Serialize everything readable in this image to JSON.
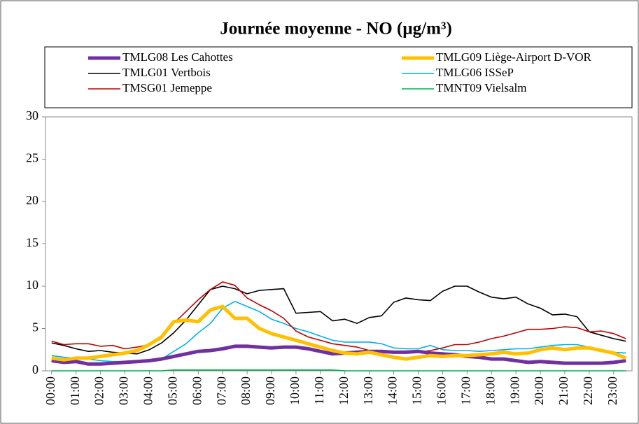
{
  "chart_data": {
    "type": "line",
    "title": "Journée moyenne - NO (µg/m³)",
    "categories": [
      "00:00",
      null,
      "01:00",
      null,
      "02:00",
      null,
      "03:00",
      null,
      "04:00",
      null,
      "05:00",
      null,
      "06:00",
      null,
      "07:00",
      null,
      "08:00",
      null,
      "09:00",
      null,
      "10:00",
      null,
      "11:00",
      null,
      "12:00",
      null,
      "13:00",
      null,
      "14:00",
      null,
      "15:00",
      null,
      "16:00",
      null,
      "17:00",
      null,
      "18:00",
      null,
      "19:00",
      null,
      "20:00",
      null,
      "21:00",
      null,
      "22:00",
      null,
      "23:00",
      null
    ],
    "series": [
      {
        "name": "TMLG08 Les Cahottes",
        "color": "#7030a0",
        "values": [
          1.2,
          1.0,
          1.1,
          0.8,
          0.8,
          0.9,
          1.0,
          1.1,
          1.2,
          1.4,
          1.7,
          2.0,
          2.3,
          2.4,
          2.6,
          2.9,
          2.9,
          2.8,
          2.7,
          2.8,
          2.8,
          2.6,
          2.3,
          2.0,
          2.1,
          2.2,
          2.3,
          2.3,
          2.2,
          2.2,
          2.3,
          2.1,
          2.0,
          1.9,
          1.7,
          1.6,
          1.4,
          1.4,
          1.2,
          1.0,
          1.1,
          1.0,
          0.9,
          0.9,
          0.9,
          0.9,
          1.0,
          1.2
        ]
      },
      {
        "name": "TMLG09 Liège-Airport D-VOR",
        "color": "#ffc000",
        "values": [
          1.5,
          1.3,
          1.5,
          1.5,
          1.7,
          1.9,
          2.1,
          2.4,
          3.1,
          4.0,
          5.8,
          6.0,
          5.8,
          7.2,
          7.6,
          6.2,
          6.2,
          5.0,
          4.4,
          4.0,
          3.6,
          3.2,
          2.8,
          2.4,
          2.1,
          2.0,
          2.2,
          1.9,
          1.6,
          1.4,
          1.6,
          1.8,
          1.7,
          1.8,
          1.8,
          1.9,
          2.0,
          2.2,
          2.0,
          2.1,
          2.5,
          2.7,
          2.5,
          2.7,
          2.7,
          2.4,
          2.1,
          1.5
        ]
      },
      {
        "name": "TMLG01 Vertbois",
        "color": "#000000",
        "values": [
          3.3,
          3.0,
          2.6,
          2.3,
          2.4,
          2.2,
          2.1,
          2.0,
          2.5,
          3.3,
          4.5,
          6.0,
          7.8,
          9.6,
          10.0,
          9.7,
          9.1,
          9.5,
          9.6,
          9.7,
          6.8,
          6.9,
          7.0,
          5.9,
          6.1,
          5.6,
          6.3,
          6.5,
          8.1,
          8.6,
          8.4,
          8.3,
          9.4,
          10.0,
          10.0,
          9.3,
          8.7,
          8.5,
          8.7,
          7.9,
          7.4,
          6.6,
          6.7,
          6.4,
          4.6,
          4.2,
          3.8,
          3.5
        ]
      },
      {
        "name": "TMLG06 ISSeP",
        "color": "#00b0f0",
        "values": [
          1.8,
          1.6,
          1.5,
          1.4,
          1.2,
          1.1,
          1.1,
          1.2,
          1.3,
          1.4,
          2.3,
          3.2,
          4.5,
          5.6,
          7.4,
          8.2,
          7.6,
          7.0,
          6.1,
          5.6,
          5.0,
          4.6,
          4.1,
          3.6,
          3.4,
          3.4,
          3.4,
          3.2,
          2.7,
          2.6,
          2.6,
          3.0,
          2.5,
          2.4,
          2.4,
          2.3,
          2.4,
          2.5,
          2.6,
          2.6,
          2.8,
          3.0,
          3.1,
          3.1,
          2.8,
          2.5,
          2.2,
          2.1
        ]
      },
      {
        "name": "TMSG01 Jemeppe",
        "color": "#c00000",
        "values": [
          3.5,
          3.1,
          3.2,
          3.2,
          2.9,
          3.0,
          2.6,
          2.8,
          3.1,
          3.8,
          5.6,
          7.0,
          8.4,
          9.6,
          10.5,
          10.1,
          8.6,
          7.8,
          7.1,
          6.2,
          4.7,
          4.0,
          3.6,
          3.2,
          3.0,
          2.8,
          2.4,
          2.3,
          2.3,
          2.3,
          2.2,
          2.4,
          2.7,
          3.1,
          3.1,
          3.4,
          3.8,
          4.1,
          4.5,
          4.9,
          4.9,
          5.0,
          5.2,
          5.1,
          4.6,
          4.7,
          4.4,
          3.8
        ]
      },
      {
        "name": "TMNT09 Vielsalm",
        "color": "#00b050",
        "values": [
          0,
          0,
          0,
          0,
          0,
          0,
          0,
          0,
          0,
          0,
          0.1,
          0.1,
          0.1,
          0.1,
          0.1,
          0.1,
          0.1,
          0.1,
          0.1,
          0.1,
          0.1,
          0.1,
          0.1,
          0.1,
          0,
          0,
          0,
          0,
          0,
          0,
          0,
          0,
          0,
          0,
          0,
          0,
          0,
          0,
          0,
          0,
          0,
          0,
          0,
          0,
          0,
          0,
          0,
          0
        ]
      }
    ],
    "ylim": [
      0,
      30
    ],
    "yticks": [
      0,
      5,
      10,
      15,
      20,
      25,
      30
    ]
  }
}
